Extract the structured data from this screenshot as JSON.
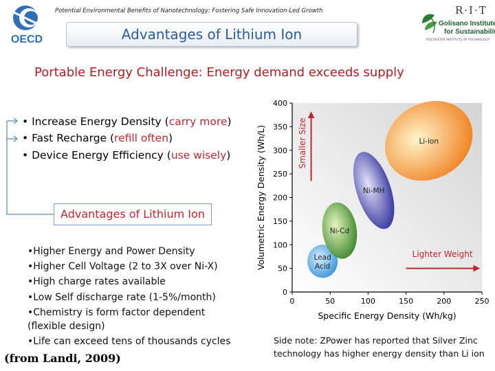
{
  "header": {
    "subtitle": "Potential Environmental Benefits of Nanotechnology: Fostering Safe Innovation-Led Growth",
    "title": "Advantages of Lithium Ion",
    "oecd_logo_text": "OECD",
    "rit_text": "R·I·T",
    "rit_line1": "Golisano Institute",
    "rit_line2": "for Sustainability",
    "rit_tiny": "ROCHESTER INSTITUTE OF TECHNOLOGY"
  },
  "challenge": "Portable Energy Challenge:  Energy demand exceeds supply",
  "bullets": [
    {
      "prefix": "• Increase Energy Density (",
      "highlight": "carry more",
      "suffix": ")"
    },
    {
      "prefix": "• Fast Recharge (",
      "highlight": "refill often",
      "suffix": ")"
    },
    {
      "prefix": "• Device Energy Efficiency (",
      "highlight": "use wisely",
      "suffix": ")"
    }
  ],
  "advantages_label": "Advantages of Lithium Ion",
  "features": [
    "•Higher Energy and Power Density",
    "•Higher Cell Voltage (2 to 3X over Ni-X)",
    "•High charge rates available",
    "•Low Self discharge rate (1-5%/month)",
    "•Chemistry is form factor dependent",
    "(flexible design)",
    "•Life can exceed tens of thousands cycles"
  ],
  "citation": "(from Landi, 2009)",
  "sidenote": {
    "line1": "Side note: ZPower has reported that Silver Zinc",
    "line2": "technology has higher energy density than Li ion"
  },
  "colors": {
    "red": "#c0272d",
    "blue_title": "#2c5aa0",
    "lead_acid": "#4aa3e0",
    "ni_cd": "#3f8f32",
    "ni_mh": "#3a3aa8",
    "li_ion": "#f08a1e"
  },
  "chart_data": {
    "type": "scatter",
    "xlabel": "Specific Energy Density (Wh/kg)",
    "ylabel": "Volumetric Energy Density (Wh/L)",
    "xlim": [
      0,
      250
    ],
    "ylim": [
      0,
      400
    ],
    "xticks": [
      0,
      50,
      100,
      150,
      200,
      250
    ],
    "yticks": [
      0,
      50,
      100,
      150,
      200,
      250,
      300,
      350,
      400
    ],
    "series": [
      {
        "name": "Lead Acid",
        "x_range": [
          20,
          60
        ],
        "y_range": [
          30,
          100
        ],
        "color": "#4aa3e0"
      },
      {
        "name": "Ni-Cd",
        "x_range": [
          40,
          85
        ],
        "y_range": [
          70,
          190
        ],
        "color": "#3f8f32"
      },
      {
        "name": "Ni-MH",
        "x_range": [
          85,
          130
        ],
        "y_range": [
          130,
          300
        ],
        "color": "#3a3aa8"
      },
      {
        "name": "Li-ion",
        "x_range": [
          120,
          240
        ],
        "y_range": [
          240,
          400
        ],
        "color": "#f08a1e"
      }
    ],
    "annotations": [
      "Smaller Size",
      "Lighter Weight"
    ],
    "grid": false
  }
}
